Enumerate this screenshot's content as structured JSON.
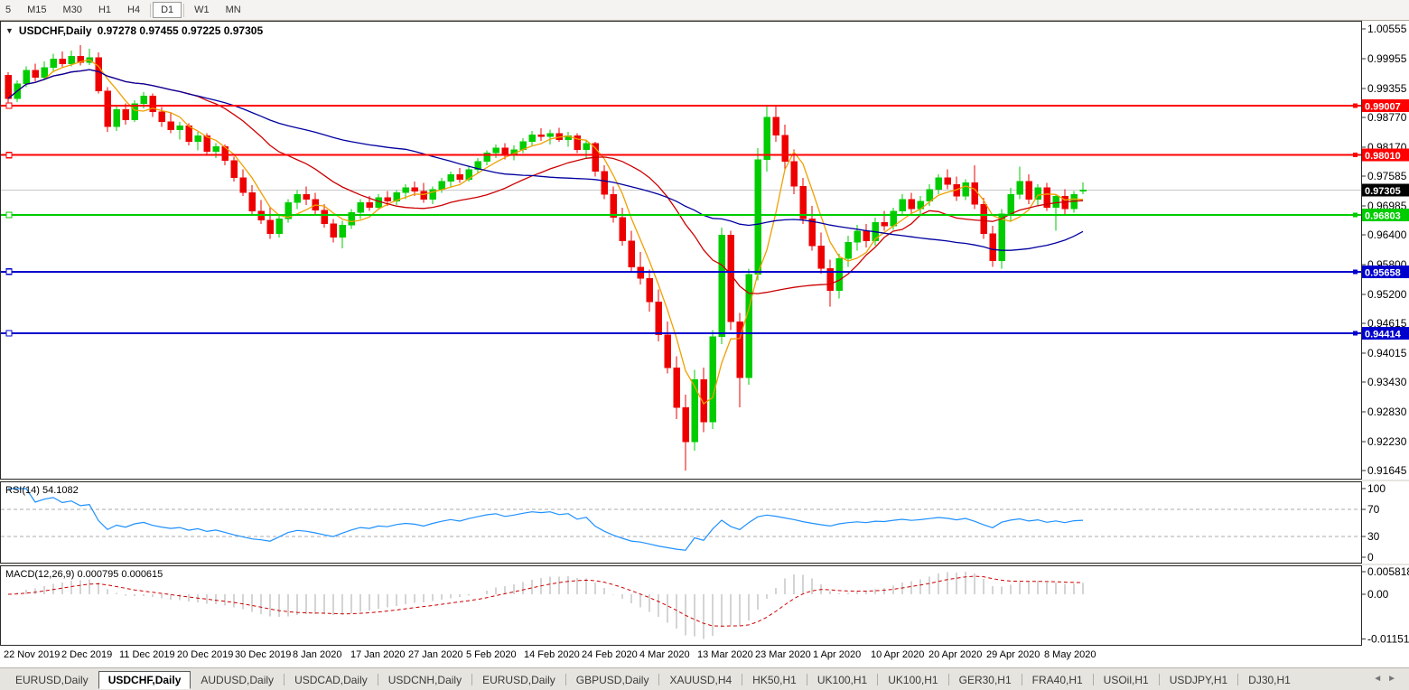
{
  "toolbar": {
    "timeframes": [
      "5",
      "M15",
      "M30",
      "H1",
      "H4",
      "D1",
      "W1",
      "MN"
    ],
    "active": "D1",
    "separators_after": [
      "H4",
      "D1"
    ]
  },
  "chart": {
    "header": {
      "dropdown_icon": "▼",
      "symbol": "USDCHF,Daily",
      "ohlc": "0.97278 0.97455 0.97225 0.97305"
    }
  },
  "chart_data": {
    "type": "candlestick",
    "symbol": "USDCHF",
    "timeframe": "Daily",
    "grid": false,
    "up_color": "#00CC00",
    "down_color": "#EE0000",
    "x_labels": [
      "22 Nov 2019",
      "2 Dec 2019",
      "11 Dec 2019",
      "20 Dec 2019",
      "30 Dec 2019",
      "8 Jan 2020",
      "17 Jan 2020",
      "27 Jan 2020",
      "5 Feb 2020",
      "14 Feb 2020",
      "24 Feb 2020",
      "4 Mar 2020",
      "13 Mar 2020",
      "23 Mar 2020",
      "1 Apr 2020",
      "10 Apr 2020",
      "20 Apr 2020",
      "29 Apr 2020",
      "8 May 2020"
    ],
    "price_axis_ticks": [
      "1.00555",
      "0.99955",
      "0.99355",
      "0.98770",
      "0.98170",
      "0.97585",
      "0.96985",
      "0.96400",
      "0.95800",
      "0.95200",
      "0.94615",
      "0.94015",
      "0.93430",
      "0.92830",
      "0.92230",
      "0.91645"
    ],
    "hlines": [
      {
        "price": 0.99007,
        "label": "0.99007",
        "color": "#FF0000"
      },
      {
        "price": 0.9801,
        "label": "0.98010",
        "color": "#FF0000"
      },
      {
        "price": 0.96803,
        "label": "0.96803",
        "color": "#00CC00"
      },
      {
        "price": 0.95658,
        "label": "0.95658",
        "color": "#0000CD"
      },
      {
        "price": 0.94414,
        "label": "0.94414",
        "color": "#0000CD"
      }
    ],
    "current_price": {
      "price": 0.97305,
      "label": "0.97305",
      "line_color": "#C8C8C8",
      "badge_color": "#000000"
    },
    "moving_averages": [
      {
        "period": 5,
        "color": "#F0A000"
      },
      {
        "period": 20,
        "color": "#CC0000"
      },
      {
        "period": 45,
        "color": "#0000A0"
      }
    ],
    "candles": [
      [
        0.9962,
        0.9968,
        0.9905,
        0.9915
      ],
      [
        0.9915,
        0.9952,
        0.9908,
        0.9945
      ],
      [
        0.9945,
        0.998,
        0.9938,
        0.9972
      ],
      [
        0.9972,
        0.9985,
        0.995,
        0.9958
      ],
      [
        0.9958,
        0.999,
        0.9952,
        0.9978
      ],
      [
        0.9978,
        1.0005,
        0.997,
        0.9995
      ],
      [
        0.9995,
        1.001,
        0.9978,
        0.9985
      ],
      [
        0.9985,
        1.0012,
        0.998,
        1.0
      ],
      [
        1.0,
        1.0023,
        0.9982,
        0.9988
      ],
      [
        0.9988,
        1.0015,
        0.9983,
        0.9998
      ],
      [
        0.9998,
        1.0008,
        0.9925,
        0.993
      ],
      [
        0.993,
        0.9938,
        0.9848,
        0.9858
      ],
      [
        0.9858,
        0.99,
        0.985,
        0.9893
      ],
      [
        0.9893,
        0.9905,
        0.9862,
        0.9872
      ],
      [
        0.9872,
        0.9912,
        0.9868,
        0.9905
      ],
      [
        0.9905,
        0.9928,
        0.9895,
        0.992
      ],
      [
        0.992,
        0.9925,
        0.9878,
        0.9888
      ],
      [
        0.9888,
        0.9898,
        0.9858,
        0.9868
      ],
      [
        0.9868,
        0.9888,
        0.9845,
        0.9852
      ],
      [
        0.9852,
        0.9868,
        0.9832,
        0.986
      ],
      [
        0.986,
        0.9865,
        0.982,
        0.9828
      ],
      [
        0.9828,
        0.9848,
        0.981,
        0.984
      ],
      [
        0.984,
        0.9845,
        0.98,
        0.9808
      ],
      [
        0.9808,
        0.9825,
        0.9795,
        0.9818
      ],
      [
        0.9818,
        0.9822,
        0.978,
        0.979
      ],
      [
        0.979,
        0.9798,
        0.9748,
        0.9755
      ],
      [
        0.9755,
        0.9772,
        0.9718,
        0.9725
      ],
      [
        0.9725,
        0.974,
        0.968,
        0.9688
      ],
      [
        0.9688,
        0.971,
        0.9662,
        0.967
      ],
      [
        0.967,
        0.9695,
        0.9632,
        0.9642
      ],
      [
        0.9642,
        0.968,
        0.9635,
        0.9672
      ],
      [
        0.9672,
        0.9712,
        0.9665,
        0.9705
      ],
      [
        0.9705,
        0.973,
        0.9692,
        0.9722
      ],
      [
        0.9722,
        0.9738,
        0.97,
        0.9712
      ],
      [
        0.9712,
        0.9725,
        0.9682,
        0.969
      ],
      [
        0.969,
        0.9702,
        0.9655,
        0.9662
      ],
      [
        0.9662,
        0.9672,
        0.9625,
        0.9635
      ],
      [
        0.9635,
        0.9668,
        0.9613,
        0.966
      ],
      [
        0.966,
        0.9692,
        0.9652,
        0.9685
      ],
      [
        0.9685,
        0.9712,
        0.9672,
        0.9705
      ],
      [
        0.9705,
        0.9718,
        0.9688,
        0.9695
      ],
      [
        0.9695,
        0.9722,
        0.969,
        0.9715
      ],
      [
        0.9715,
        0.9728,
        0.9698,
        0.9708
      ],
      [
        0.9708,
        0.973,
        0.97,
        0.9725
      ],
      [
        0.9725,
        0.9742,
        0.9712,
        0.9735
      ],
      [
        0.9735,
        0.9748,
        0.9718,
        0.9728
      ],
      [
        0.9728,
        0.9745,
        0.9705,
        0.9712
      ],
      [
        0.9712,
        0.9738,
        0.9702,
        0.9732
      ],
      [
        0.9732,
        0.9755,
        0.9725,
        0.9748
      ],
      [
        0.9748,
        0.9768,
        0.9738,
        0.9762
      ],
      [
        0.9762,
        0.9775,
        0.9745,
        0.9752
      ],
      [
        0.9752,
        0.9778,
        0.9748,
        0.9772
      ],
      [
        0.9772,
        0.9795,
        0.9765,
        0.9788
      ],
      [
        0.9788,
        0.981,
        0.978,
        0.9805
      ],
      [
        0.9805,
        0.9822,
        0.9795,
        0.9815
      ],
      [
        0.9815,
        0.9825,
        0.9792,
        0.98
      ],
      [
        0.98,
        0.982,
        0.979,
        0.9812
      ],
      [
        0.9812,
        0.9835,
        0.9805,
        0.9828
      ],
      [
        0.9828,
        0.985,
        0.982,
        0.9842
      ],
      [
        0.9842,
        0.9855,
        0.983,
        0.9838
      ],
      [
        0.9838,
        0.9852,
        0.9822,
        0.9845
      ],
      [
        0.9845,
        0.9856,
        0.9828,
        0.9832
      ],
      [
        0.9832,
        0.9848,
        0.9818,
        0.984
      ],
      [
        0.984,
        0.9845,
        0.9805,
        0.9812
      ],
      [
        0.9812,
        0.9832,
        0.9795,
        0.9825
      ],
      [
        0.9825,
        0.9828,
        0.9758,
        0.9768
      ],
      [
        0.9768,
        0.978,
        0.9712,
        0.9722
      ],
      [
        0.9722,
        0.9738,
        0.9665,
        0.9675
      ],
      [
        0.9675,
        0.9695,
        0.9618,
        0.9628
      ],
      [
        0.9628,
        0.9648,
        0.9565,
        0.9575
      ],
      [
        0.9575,
        0.9605,
        0.954,
        0.9552
      ],
      [
        0.9552,
        0.957,
        0.9485,
        0.9505
      ],
      [
        0.9505,
        0.953,
        0.9425,
        0.9438
      ],
      [
        0.9438,
        0.9465,
        0.936,
        0.9372
      ],
      [
        0.9372,
        0.9395,
        0.9268,
        0.9292
      ],
      [
        0.9292,
        0.9318,
        0.91645,
        0.9222
      ],
      [
        0.9222,
        0.9368,
        0.9205,
        0.9348
      ],
      [
        0.9348,
        0.9372,
        0.9242,
        0.9262
      ],
      [
        0.9262,
        0.9448,
        0.9248,
        0.9435
      ],
      [
        0.9435,
        0.9655,
        0.942,
        0.964
      ],
      [
        0.964,
        0.9648,
        0.9448,
        0.9465
      ],
      [
        0.9465,
        0.9482,
        0.9292,
        0.9352
      ],
      [
        0.9352,
        0.9572,
        0.9338,
        0.956
      ],
      [
        0.956,
        0.9815,
        0.9548,
        0.9792
      ],
      [
        0.9792,
        0.99,
        0.9768,
        0.9877
      ],
      [
        0.9877,
        0.9901,
        0.9828,
        0.9841
      ],
      [
        0.9841,
        0.9862,
        0.9772,
        0.9788
      ],
      [
        0.9788,
        0.9812,
        0.9722,
        0.9738
      ],
      [
        0.9738,
        0.9755,
        0.9662,
        0.9672
      ],
      [
        0.9672,
        0.9698,
        0.9608,
        0.9618
      ],
      [
        0.9618,
        0.9645,
        0.9562,
        0.9572
      ],
      [
        0.9572,
        0.959,
        0.9495,
        0.9528
      ],
      [
        0.9528,
        0.9602,
        0.9512,
        0.9592
      ],
      [
        0.9592,
        0.9638,
        0.9575,
        0.9625
      ],
      [
        0.9625,
        0.966,
        0.9608,
        0.9648
      ],
      [
        0.9648,
        0.9662,
        0.9615,
        0.9628
      ],
      [
        0.9628,
        0.9675,
        0.9618,
        0.9665
      ],
      [
        0.9665,
        0.9688,
        0.9648,
        0.9658
      ],
      [
        0.9658,
        0.9695,
        0.965,
        0.9688
      ],
      [
        0.9688,
        0.9722,
        0.9678,
        0.9712
      ],
      [
        0.9712,
        0.9725,
        0.9682,
        0.9692
      ],
      [
        0.9692,
        0.9718,
        0.968,
        0.9708
      ],
      [
        0.9708,
        0.9742,
        0.9698,
        0.9732
      ],
      [
        0.9732,
        0.9762,
        0.9722,
        0.9755
      ],
      [
        0.9755,
        0.9772,
        0.9732,
        0.9742
      ],
      [
        0.9742,
        0.9758,
        0.9708,
        0.9718
      ],
      [
        0.9718,
        0.9752,
        0.971,
        0.9745
      ],
      [
        0.9745,
        0.978,
        0.9692,
        0.9702
      ],
      [
        0.9702,
        0.9715,
        0.9632,
        0.9642
      ],
      [
        0.9642,
        0.9658,
        0.9575,
        0.9588
      ],
      [
        0.9588,
        0.9692,
        0.9572,
        0.9682
      ],
      [
        0.9682,
        0.9735,
        0.9668,
        0.9722
      ],
      [
        0.9722,
        0.9778,
        0.9712,
        0.9748
      ],
      [
        0.9748,
        0.9762,
        0.9702,
        0.9712
      ],
      [
        0.9712,
        0.9742,
        0.9698,
        0.9735
      ],
      [
        0.9735,
        0.9745,
        0.9688,
        0.9695
      ],
      [
        0.9695,
        0.9722,
        0.9648,
        0.9718
      ],
      [
        0.9718,
        0.9732,
        0.9682,
        0.9692
      ],
      [
        0.9692,
        0.9728,
        0.9685,
        0.9722
      ],
      [
        0.97278,
        0.97455,
        0.97225,
        0.97305
      ]
    ],
    "rsi": {
      "label": "RSI(14) 54.1082",
      "period": 14,
      "value": 54.1082,
      "levels": [
        70,
        30
      ],
      "axis_ticks": [
        "100",
        "70",
        "30",
        "0"
      ],
      "color": "#1E90FF"
    },
    "macd": {
      "label": "MACD(12,26,9) 0.000795 0.000615",
      "fast": 12,
      "slow": 26,
      "signal": 9,
      "macd_value": 0.000795,
      "signal_value": 0.000615,
      "axis_ticks": [
        "0.005818",
        "0.00",
        "-0.011514"
      ],
      "axis_max": 0.005818,
      "axis_min": -0.011514,
      "hist_color": "#A8A8A8",
      "signal_color": "#CC0000"
    }
  },
  "tabs": {
    "items": [
      "EURUSD,Daily",
      "USDCHF,Daily",
      "AUDUSD,Daily",
      "USDCAD,Daily",
      "USDCNH,Daily",
      "EURUSD,Daily",
      "GBPUSD,Daily",
      "XAUUSD,H4",
      "HK50,H1",
      "UK100,H1",
      "UK100,H1",
      "GER30,H1",
      "FRA40,H1",
      "USOil,H1",
      "USDJPY,H1",
      "DJ30,H1"
    ],
    "active_index": 1,
    "nav_arrows": [
      "◄",
      "►"
    ]
  }
}
